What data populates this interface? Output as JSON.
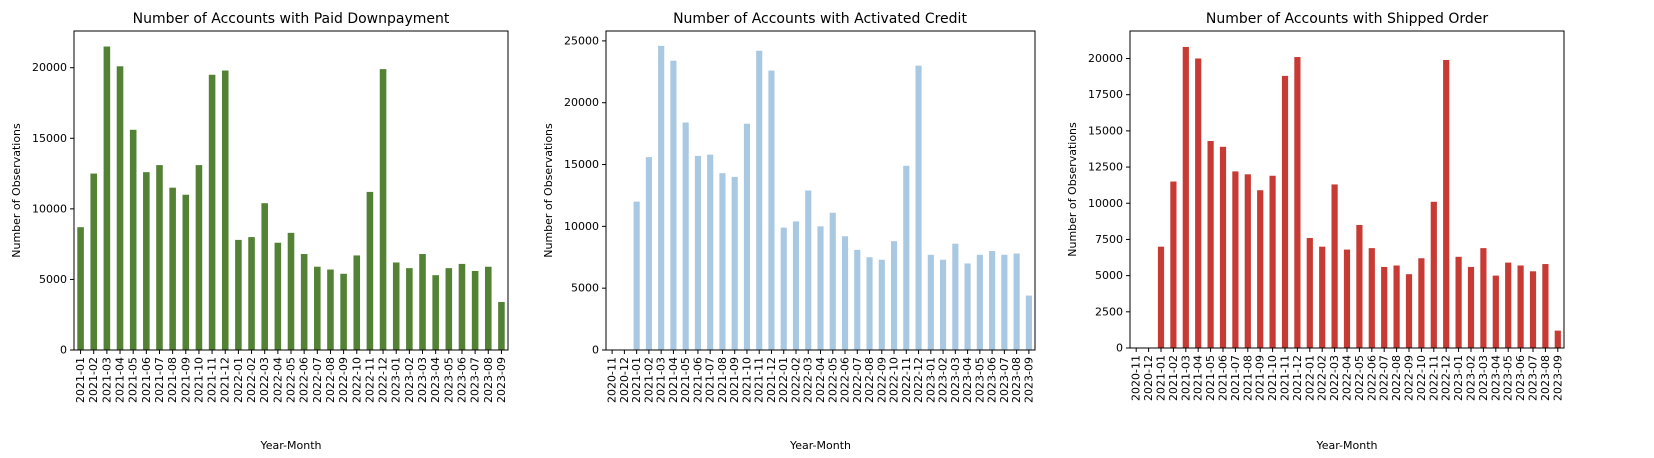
{
  "chart_data": [
    {
      "type": "bar",
      "title": "Number of Accounts with Paid Downpayment",
      "xlabel": "Year-Month",
      "ylabel": "Number of Observations",
      "ylim": [
        0,
        22600
      ],
      "yticks": [
        0,
        5000,
        10000,
        15000,
        20000
      ],
      "color": "#548235",
      "categories": [
        "2021-01",
        "2021-02",
        "2021-03",
        "2021-04",
        "2021-05",
        "2021-06",
        "2021-07",
        "2021-08",
        "2021-09",
        "2021-10",
        "2021-11",
        "2021-12",
        "2022-01",
        "2022-02",
        "2022-03",
        "2022-04",
        "2022-05",
        "2022-06",
        "2022-07",
        "2022-08",
        "2022-09",
        "2022-10",
        "2022-11",
        "2022-12",
        "2023-01",
        "2023-02",
        "2023-03",
        "2023-04",
        "2023-05",
        "2023-06",
        "2023-07",
        "2023-08",
        "2023-09"
      ],
      "values": [
        8700,
        12500,
        21500,
        20100,
        15600,
        12600,
        13100,
        11500,
        11000,
        13100,
        19500,
        19800,
        7800,
        8000,
        10400,
        7600,
        8300,
        6800,
        5900,
        5700,
        5400,
        6700,
        11200,
        19900,
        6200,
        5800,
        6800,
        5300,
        5800,
        6100,
        5600,
        5900,
        3400
      ]
    },
    {
      "type": "bar",
      "title": "Number of Accounts with Activated Credit",
      "xlabel": "Year-Month",
      "ylabel": "Number of Observations",
      "ylim": [
        0,
        25800
      ],
      "yticks": [
        0,
        5000,
        10000,
        15000,
        20000,
        25000
      ],
      "color": "#a9c8e2",
      "categories": [
        "2020-11",
        "2020-12",
        "2021-01",
        "2021-02",
        "2021-03",
        "2021-04",
        "2021-05",
        "2021-06",
        "2021-07",
        "2021-08",
        "2021-09",
        "2021-10",
        "2021-11",
        "2021-12",
        "2022-01",
        "2022-02",
        "2022-03",
        "2022-04",
        "2022-05",
        "2022-06",
        "2022-07",
        "2022-08",
        "2022-09",
        "2022-10",
        "2022-11",
        "2022-12",
        "2023-01",
        "2023-02",
        "2023-03",
        "2023-04",
        "2023-05",
        "2023-06",
        "2023-07",
        "2023-08",
        "2023-09"
      ],
      "values": [
        0,
        0,
        12000,
        15600,
        24600,
        23400,
        18400,
        15700,
        15800,
        14300,
        14000,
        18300,
        24200,
        22600,
        9900,
        10400,
        12900,
        10000,
        11100,
        9200,
        8100,
        7500,
        7300,
        8800,
        14900,
        23000,
        7700,
        7300,
        8600,
        7000,
        7700,
        8000,
        7700,
        7800,
        4400
      ]
    },
    {
      "type": "bar",
      "title": "Number of Accounts with Shipped Order",
      "xlabel": "Year-Month",
      "ylabel": "Number of Observations",
      "ylim": [
        0,
        21900
      ],
      "yticks": [
        0,
        2500,
        5000,
        7500,
        10000,
        12500,
        15000,
        17500,
        20000
      ],
      "color": "#c83a34",
      "categories": [
        "2020-11",
        "2020-12",
        "2021-01",
        "2021-02",
        "2021-03",
        "2021-04",
        "2021-05",
        "2021-06",
        "2021-07",
        "2021-08",
        "2021-09",
        "2021-10",
        "2021-11",
        "2021-12",
        "2022-01",
        "2022-02",
        "2022-03",
        "2022-04",
        "2022-05",
        "2022-06",
        "2022-07",
        "2022-08",
        "2022-09",
        "2022-10",
        "2022-11",
        "2022-12",
        "2023-01",
        "2023-02",
        "2023-03",
        "2023-04",
        "2023-05",
        "2023-06",
        "2023-07",
        "2023-08",
        "2023-09"
      ],
      "values": [
        0,
        0,
        7000,
        11500,
        20800,
        20000,
        14300,
        13900,
        12200,
        12000,
        10900,
        11900,
        18800,
        20100,
        7600,
        7000,
        11300,
        6800,
        8500,
        6900,
        5600,
        5700,
        5100,
        6200,
        10100,
        19900,
        6300,
        5600,
        6900,
        5000,
        5900,
        5700,
        5300,
        5800,
        1200
      ]
    }
  ]
}
